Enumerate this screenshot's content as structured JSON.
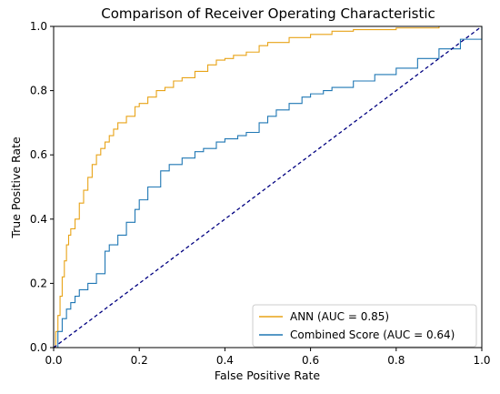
{
  "chart_data": {
    "type": "line",
    "title": "Comparison of Receiver Operating Characteristic",
    "xlabel": "False Positive Rate",
    "ylabel": "True Positive Rate",
    "xlim": [
      0.0,
      1.0
    ],
    "ylim": [
      0.0,
      1.0
    ],
    "xticks": [
      0.0,
      0.2,
      0.4,
      0.6,
      0.8,
      1.0
    ],
    "yticks": [
      0.0,
      0.2,
      0.4,
      0.6,
      0.8,
      1.0
    ],
    "xtick_labels": [
      "0.0",
      "0.2",
      "0.4",
      "0.6",
      "0.8",
      "1.0"
    ],
    "ytick_labels": [
      "0.0",
      "0.2",
      "0.4",
      "0.6",
      "0.8",
      "1.0"
    ],
    "grid": false,
    "legend_position": "bottom-right",
    "series": [
      {
        "name": "ANN (AUC = 0.85)",
        "color": "#e8a317",
        "x": [
          0.0,
          0.005,
          0.01,
          0.015,
          0.02,
          0.025,
          0.03,
          0.035,
          0.04,
          0.05,
          0.06,
          0.07,
          0.08,
          0.09,
          0.1,
          0.11,
          0.12,
          0.13,
          0.14,
          0.15,
          0.17,
          0.19,
          0.2,
          0.22,
          0.24,
          0.26,
          0.28,
          0.3,
          0.33,
          0.36,
          0.38,
          0.4,
          0.42,
          0.45,
          0.48,
          0.5,
          0.55,
          0.6,
          0.65,
          0.7,
          0.8,
          0.9,
          1.0
        ],
        "y": [
          0.0,
          0.05,
          0.1,
          0.16,
          0.22,
          0.27,
          0.32,
          0.35,
          0.37,
          0.4,
          0.45,
          0.49,
          0.53,
          0.57,
          0.6,
          0.62,
          0.64,
          0.66,
          0.68,
          0.7,
          0.72,
          0.75,
          0.76,
          0.78,
          0.8,
          0.81,
          0.83,
          0.84,
          0.86,
          0.88,
          0.895,
          0.9,
          0.91,
          0.92,
          0.94,
          0.95,
          0.965,
          0.975,
          0.985,
          0.99,
          0.995,
          1.0,
          1.0
        ]
      },
      {
        "name": "Combined Score (AUC = 0.64)",
        "color": "#1f77b4",
        "x": [
          0.0,
          0.01,
          0.02,
          0.03,
          0.04,
          0.05,
          0.06,
          0.08,
          0.1,
          0.12,
          0.13,
          0.15,
          0.17,
          0.19,
          0.2,
          0.22,
          0.25,
          0.27,
          0.3,
          0.33,
          0.35,
          0.38,
          0.4,
          0.43,
          0.45,
          0.48,
          0.5,
          0.52,
          0.55,
          0.58,
          0.6,
          0.63,
          0.65,
          0.7,
          0.75,
          0.8,
          0.85,
          0.9,
          0.95,
          1.0
        ],
        "y": [
          0.0,
          0.05,
          0.09,
          0.12,
          0.14,
          0.16,
          0.18,
          0.2,
          0.23,
          0.3,
          0.32,
          0.35,
          0.39,
          0.43,
          0.46,
          0.5,
          0.55,
          0.57,
          0.59,
          0.61,
          0.62,
          0.64,
          0.65,
          0.66,
          0.67,
          0.7,
          0.72,
          0.74,
          0.76,
          0.78,
          0.79,
          0.8,
          0.81,
          0.83,
          0.85,
          0.87,
          0.9,
          0.93,
          0.96,
          1.0
        ]
      },
      {
        "name": "",
        "color": "#000080",
        "dashed": true,
        "x": [
          0.0,
          1.0
        ],
        "y": [
          0.0,
          1.0
        ]
      }
    ]
  }
}
